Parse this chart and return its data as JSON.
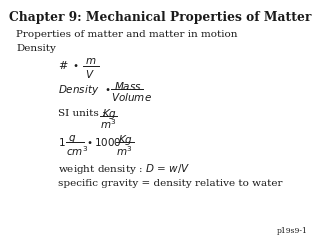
{
  "title": "Chapter 9: Mechanical Properties of Matter",
  "bg_color": "#ffffff",
  "text_color": "#1a1a1a",
  "page_num": "p19s9-1"
}
